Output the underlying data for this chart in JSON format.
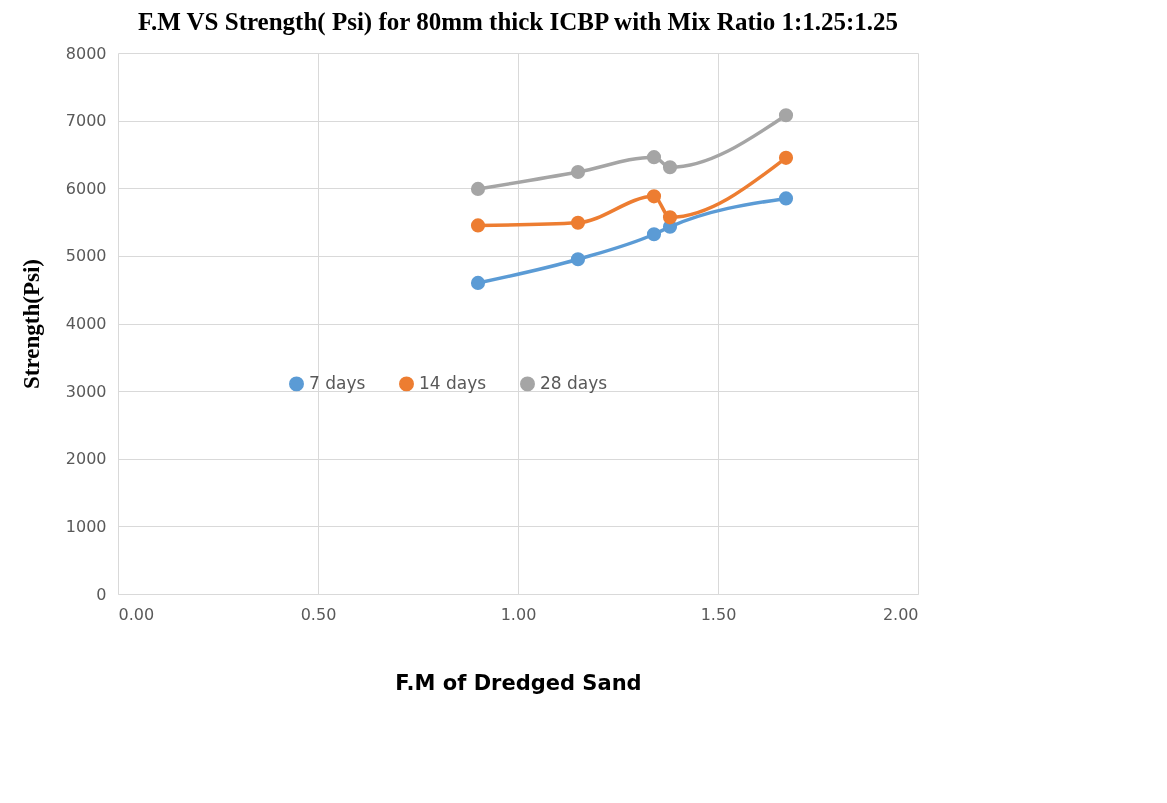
{
  "chart_data": {
    "type": "line",
    "title": "F.M VS Strength( Psi)  for 80mm thick ICBP with Mix Ratio 1:1.25:1.25",
    "xlabel": "F.M of Dredged Sand",
    "ylabel": "Strength(Psi)",
    "x": [
      0.9,
      1.15,
      1.34,
      1.38,
      1.67
    ],
    "series": [
      {
        "name": "7 days",
        "color": "#5b9bd5",
        "values": [
          4600,
          4950,
          5320,
          5430,
          5850
        ]
      },
      {
        "name": "14 days",
        "color": "#ed7d31",
        "values": [
          5450,
          5490,
          5880,
          5570,
          6450
        ]
      },
      {
        "name": "28 days",
        "color": "#a5a5a5",
        "values": [
          5990,
          6240,
          6460,
          6310,
          7080
        ]
      }
    ],
    "xlim": [
      0,
      2
    ],
    "xticks": [
      {
        "value": 0,
        "label": "0.00"
      },
      {
        "value": 0.5,
        "label": "0.50"
      },
      {
        "value": 1,
        "label": "1.00"
      },
      {
        "value": 1.5,
        "label": "1.50"
      },
      {
        "value": 2,
        "label": "2.00"
      }
    ],
    "ylim": [
      0,
      8000
    ],
    "yticks": [
      0,
      1000,
      2000,
      3000,
      4000,
      5000,
      6000,
      7000,
      8000
    ],
    "grid": true,
    "legend": "center",
    "marker": "circle",
    "line_style": "solid"
  }
}
